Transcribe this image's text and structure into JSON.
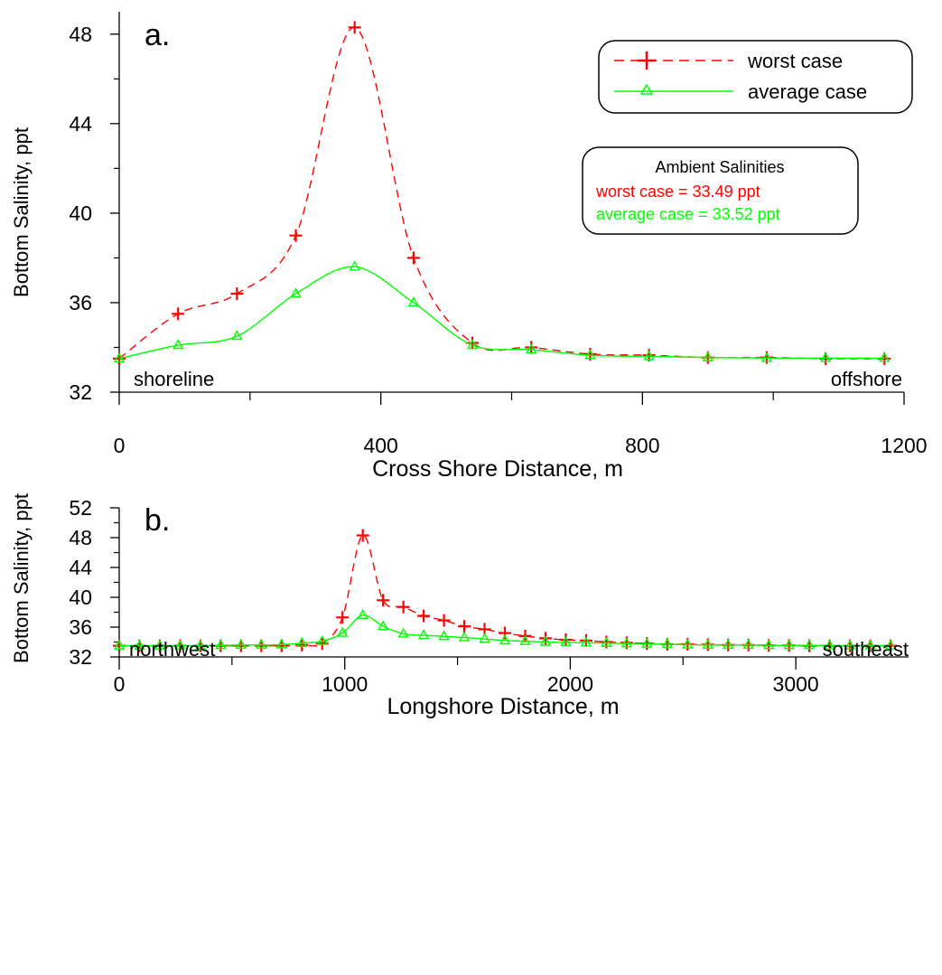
{
  "colors": {
    "worst": "#ff0000",
    "average": "#00ff00",
    "axis": "#000000"
  },
  "chart_data": [
    {
      "type": "line",
      "panel_label": "a.",
      "xlabel": "Cross Shore Distance, m",
      "ylabel": "Bottom Salinity, ppt",
      "xlim": [
        0,
        1200
      ],
      "ylim": [
        32,
        49
      ],
      "xticks": [
        0,
        400,
        800,
        1200
      ],
      "xminor": [
        200,
        600,
        1000
      ],
      "yticks": [
        32,
        36,
        40,
        44,
        48
      ],
      "yminor": [
        34,
        38,
        42,
        46
      ],
      "annotations": {
        "left": "shoreline",
        "right": "offshore"
      },
      "series": [
        {
          "name": "worst case",
          "marker": "plus",
          "style": "dashed",
          "x": [
            0,
            90,
            180,
            270,
            360,
            450,
            540,
            630,
            720,
            810,
            900,
            990,
            1080,
            1170
          ],
          "y": [
            33.5,
            35.5,
            36.4,
            39.0,
            48.3,
            38.0,
            34.2,
            34.0,
            33.7,
            33.65,
            33.55,
            33.55,
            33.5,
            33.5
          ]
        },
        {
          "name": "average case",
          "marker": "triangle",
          "style": "solid",
          "x": [
            0,
            90,
            180,
            270,
            360,
            450,
            540,
            630,
            720,
            810,
            900,
            990,
            1080,
            1170
          ],
          "y": [
            33.5,
            34.1,
            34.5,
            36.4,
            37.6,
            36.0,
            34.1,
            33.9,
            33.65,
            33.6,
            33.55,
            33.52,
            33.52,
            33.52
          ]
        }
      ],
      "legend": {
        "placement": "top-right",
        "items": [
          "worst case",
          "average case"
        ]
      },
      "ambient_box": {
        "title": "Ambient Salinities",
        "worst_text": "worst case = 33.49 ppt",
        "average_text": "average case = 33.52 ppt"
      }
    },
    {
      "type": "line",
      "panel_label": "b.",
      "xlabel": "Longshore Distance, m",
      "ylabel": "Bottom Salinity, ppt",
      "xlim": [
        0,
        3500
      ],
      "ylim": [
        32,
        52
      ],
      "xticks": [
        0,
        1000,
        2000,
        3000
      ],
      "xminor": [
        500,
        1500,
        2500
      ],
      "yticks": [
        32,
        36,
        40,
        44,
        48,
        52
      ],
      "yminor": [
        34,
        38,
        42,
        46,
        50
      ],
      "annotations": {
        "left": "northwest",
        "right": "southeast"
      },
      "series": [
        {
          "name": "worst case",
          "marker": "plus",
          "style": "dashed",
          "x": [
            0,
            90,
            180,
            270,
            360,
            450,
            540,
            630,
            720,
            810,
            900,
            990,
            1080,
            1170,
            1260,
            1350,
            1440,
            1530,
            1620,
            1710,
            1800,
            1890,
            1980,
            2070,
            2160,
            2250,
            2340,
            2430,
            2520,
            2610,
            2700,
            2790,
            2880,
            2970,
            3060,
            3150,
            3240,
            3330,
            3420
          ],
          "y": [
            33.5,
            33.5,
            33.5,
            33.5,
            33.5,
            33.5,
            33.5,
            33.5,
            33.5,
            33.6,
            33.8,
            37.3,
            48.3,
            39.6,
            38.7,
            37.5,
            36.9,
            36.1,
            35.7,
            35.2,
            34.8,
            34.5,
            34.3,
            34.2,
            34.0,
            33.9,
            33.8,
            33.7,
            33.7,
            33.65,
            33.6,
            33.6,
            33.55,
            33.55,
            33.5,
            33.5,
            33.5,
            33.5,
            33.5
          ]
        },
        {
          "name": "average case",
          "marker": "triangle",
          "style": "solid",
          "x": [
            0,
            90,
            180,
            270,
            360,
            450,
            540,
            630,
            720,
            810,
            900,
            990,
            1080,
            1170,
            1260,
            1350,
            1440,
            1530,
            1620,
            1710,
            1800,
            1890,
            1980,
            2070,
            2160,
            2250,
            2340,
            2430,
            2520,
            2610,
            2700,
            2790,
            2880,
            2970,
            3060,
            3150,
            3240,
            3330,
            3420
          ],
          "y": [
            33.5,
            33.5,
            33.5,
            33.5,
            33.5,
            33.55,
            33.6,
            33.6,
            33.65,
            33.85,
            34.1,
            35.2,
            37.6,
            36.1,
            35.1,
            34.9,
            34.75,
            34.6,
            34.4,
            34.2,
            34.1,
            34.0,
            33.95,
            33.9,
            33.85,
            33.8,
            33.75,
            33.7,
            33.65,
            33.6,
            33.6,
            33.6,
            33.55,
            33.55,
            33.55,
            33.52,
            33.52,
            33.52,
            33.52
          ]
        }
      ]
    }
  ]
}
